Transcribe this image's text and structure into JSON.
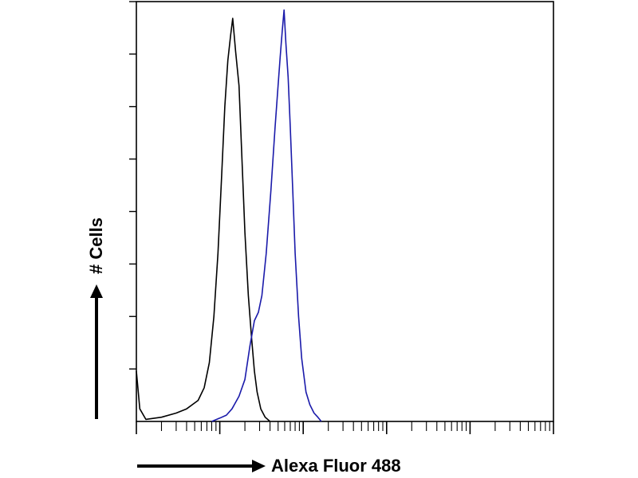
{
  "chart_data": {
    "type": "line",
    "title": "",
    "xlabel": "Alexa Fluor 488",
    "ylabel": "# Cells",
    "xscale": "log",
    "xlim": [
      1,
      100000
    ],
    "ylim": [
      0,
      100
    ],
    "x_tick_labels_visible": false,
    "y_tick_labels_visible": false,
    "grid": false,
    "legend": "none",
    "series": [
      {
        "color": "#000000",
        "points": [
          [
            1,
            12
          ],
          [
            1.1,
            3
          ],
          [
            1.3,
            0.5
          ],
          [
            2,
            1
          ],
          [
            3,
            2
          ],
          [
            4,
            3
          ],
          [
            5.5,
            5
          ],
          [
            6.5,
            8
          ],
          [
            7.5,
            14
          ],
          [
            8.5,
            25
          ],
          [
            9.5,
            40
          ],
          [
            10.5,
            58
          ],
          [
            11.5,
            75
          ],
          [
            12.5,
            86
          ],
          [
            13.5,
            92
          ],
          [
            14.3,
            96
          ],
          [
            15.5,
            88
          ],
          [
            17,
            80
          ],
          [
            18.5,
            62
          ],
          [
            20,
            45
          ],
          [
            22,
            30
          ],
          [
            24,
            20
          ],
          [
            26,
            12
          ],
          [
            28,
            7
          ],
          [
            31,
            3
          ],
          [
            35,
            1
          ],
          [
            40,
            0
          ]
        ]
      },
      {
        "color": "#1a1aaa",
        "points": [
          [
            8,
            0
          ],
          [
            10,
            0.8
          ],
          [
            12,
            1.5
          ],
          [
            14,
            3
          ],
          [
            17,
            6
          ],
          [
            20,
            10
          ],
          [
            23,
            18
          ],
          [
            26,
            24
          ],
          [
            29,
            26
          ],
          [
            32,
            30
          ],
          [
            36,
            40
          ],
          [
            41,
            55
          ],
          [
            46,
            70
          ],
          [
            50,
            80
          ],
          [
            53,
            87
          ],
          [
            56,
            93
          ],
          [
            59,
            98
          ],
          [
            62,
            90
          ],
          [
            66,
            82
          ],
          [
            70,
            70
          ],
          [
            75,
            55
          ],
          [
            80,
            40
          ],
          [
            88,
            25
          ],
          [
            96,
            15
          ],
          [
            108,
            7
          ],
          [
            120,
            4
          ],
          [
            135,
            2
          ],
          [
            150,
            1
          ],
          [
            165,
            0
          ]
        ]
      }
    ]
  },
  "axes": {
    "x_axis_label": "Alexa Fluor 488",
    "y_axis_label": "# Cells"
  }
}
